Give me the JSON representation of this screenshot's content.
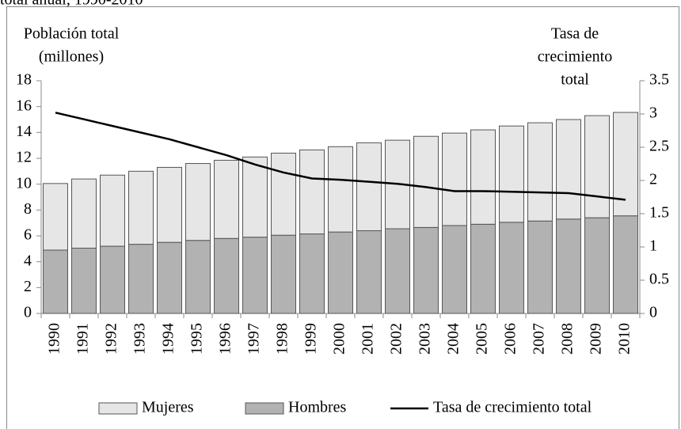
{
  "chart_data": {
    "type": "stacked-bar-line",
    "title": "total anual, 1990-2010",
    "y_label": [
      "Población total",
      "(millones)"
    ],
    "y2_label": [
      "Tasa de",
      "crecimiento",
      "total"
    ],
    "categories": [
      "1990",
      "1991",
      "1992",
      "1993",
      "1994",
      "1995",
      "1996",
      "1997",
      "1998",
      "1999",
      "2000",
      "2001",
      "2002",
      "2003",
      "2004",
      "2005",
      "2006",
      "2007",
      "2008",
      "2009",
      "2010"
    ],
    "series": [
      {
        "name": "Mujeres",
        "color": "#e6e6e6",
        "type": "bar",
        "values": [
          5.15,
          5.35,
          5.5,
          5.65,
          5.8,
          5.95,
          6.05,
          6.2,
          6.35,
          6.5,
          6.6,
          6.8,
          6.85,
          7.05,
          7.15,
          7.3,
          7.45,
          7.6,
          7.7,
          7.9,
          8.0
        ]
      },
      {
        "name": "Hombres",
        "color": "#b2b2b2",
        "type": "bar",
        "values": [
          4.9,
          5.05,
          5.2,
          5.35,
          5.5,
          5.65,
          5.8,
          5.9,
          6.05,
          6.15,
          6.3,
          6.4,
          6.55,
          6.65,
          6.8,
          6.9,
          7.05,
          7.15,
          7.3,
          7.4,
          7.55
        ]
      },
      {
        "name": "Tasa de crecimiento total",
        "color": "#000000",
        "type": "line",
        "axis": "y2",
        "values": [
          3.02,
          2.92,
          2.82,
          2.72,
          2.62,
          2.5,
          2.38,
          2.24,
          2.12,
          2.03,
          2.01,
          1.98,
          1.95,
          1.9,
          1.84,
          1.84,
          1.83,
          1.82,
          1.81,
          1.76,
          1.71
        ]
      }
    ],
    "ylim": [
      0,
      18
    ],
    "yticks": [
      0,
      2,
      4,
      6,
      8,
      10,
      12,
      14,
      16,
      18
    ],
    "y2lim": [
      0,
      3.5
    ],
    "y2ticks": [
      0,
      0.5,
      1,
      1.5,
      2,
      2.5,
      3,
      3.5
    ],
    "legend": "bottom"
  }
}
